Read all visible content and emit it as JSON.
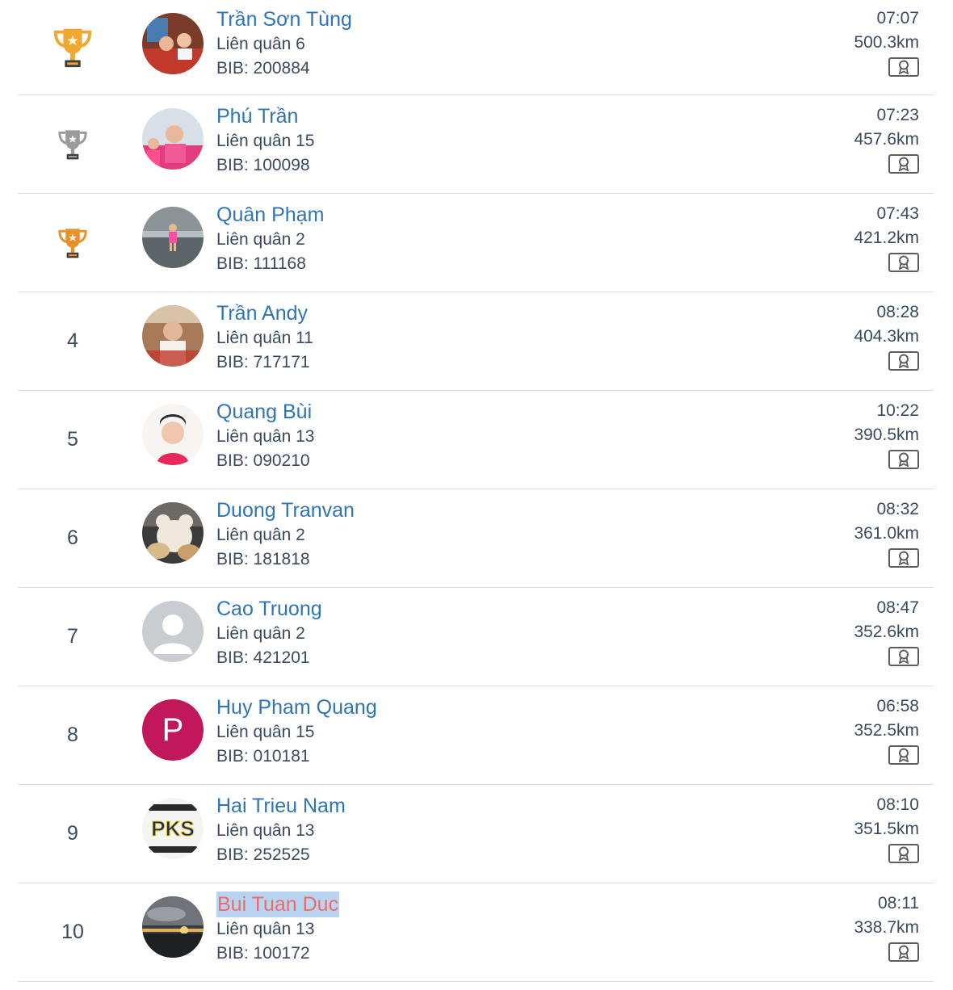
{
  "rows": [
    {
      "rank": "",
      "medal": "gold",
      "name": "Trần Sơn Tùng",
      "team": "Liên quân 6",
      "bib": "BIB: 200884",
      "pace": "07:07",
      "distance": "500.3km",
      "avatar": "photo-red"
    },
    {
      "rank": "",
      "medal": "silver",
      "name": "Phú Trần",
      "team": "Liên quân 15",
      "bib": "BIB: 100098",
      "pace": "07:23",
      "distance": "457.6km",
      "avatar": "photo-pink"
    },
    {
      "rank": "",
      "medal": "bronze",
      "name": "Quân Phạm",
      "team": "Liên quân 2",
      "bib": "BIB: 111168",
      "pace": "07:43",
      "distance": "421.2km",
      "avatar": "photo-beach"
    },
    {
      "rank": "4",
      "medal": "",
      "name": "Trần Andy",
      "team": "Liên quân 11",
      "bib": "BIB: 717171",
      "pace": "08:28",
      "distance": "404.3km",
      "avatar": "photo-cafe"
    },
    {
      "rank": "5",
      "medal": "",
      "name": "Quang Bùi",
      "team": "Liên quân 13",
      "bib": "BIB: 090210",
      "pace": "10:22",
      "distance": "390.5km",
      "avatar": "photo-selfie"
    },
    {
      "rank": "6",
      "medal": "",
      "name": "Duong Tranvan",
      "team": "Liên quân 2",
      "bib": "BIB: 181818",
      "pace": "08:32",
      "distance": "361.0km",
      "avatar": "photo-plush"
    },
    {
      "rank": "7",
      "medal": "",
      "name": "Cao Truong",
      "team": "Liên quân 2",
      "bib": "BIB: 421201",
      "pace": "08:47",
      "distance": "352.6km",
      "avatar": "default-user"
    },
    {
      "rank": "8",
      "medal": "",
      "name": "Huy Pham Quang",
      "team": "Liên quân 15",
      "bib": "BIB: 010181",
      "pace": "06:58",
      "distance": "352.5km",
      "avatar": "letter-P"
    },
    {
      "rank": "9",
      "medal": "",
      "name": "Hai Trieu Nam",
      "team": "Liên quân 13",
      "bib": "BIB: 252525",
      "pace": "08:10",
      "distance": "351.5km",
      "avatar": "logo-pks"
    },
    {
      "rank": "10",
      "medal": "",
      "name": "Bui Tuan Duc",
      "team": "Liên quân 13",
      "bib": "BIB: 100172",
      "pace": "08:11",
      "distance": "338.7km",
      "avatar": "photo-sunset",
      "highlighted": true
    }
  ],
  "avatar_letter": "P",
  "logo_text": "PKS",
  "colors": {
    "name_link": "#2f75b5",
    "name_visited": "#f06a6a",
    "highlight": "#b9d4f1",
    "gold": "#f0a830",
    "silver": "#9a9a9a",
    "bronze": "#e8902a",
    "letter_avatar": "#c2185b"
  }
}
